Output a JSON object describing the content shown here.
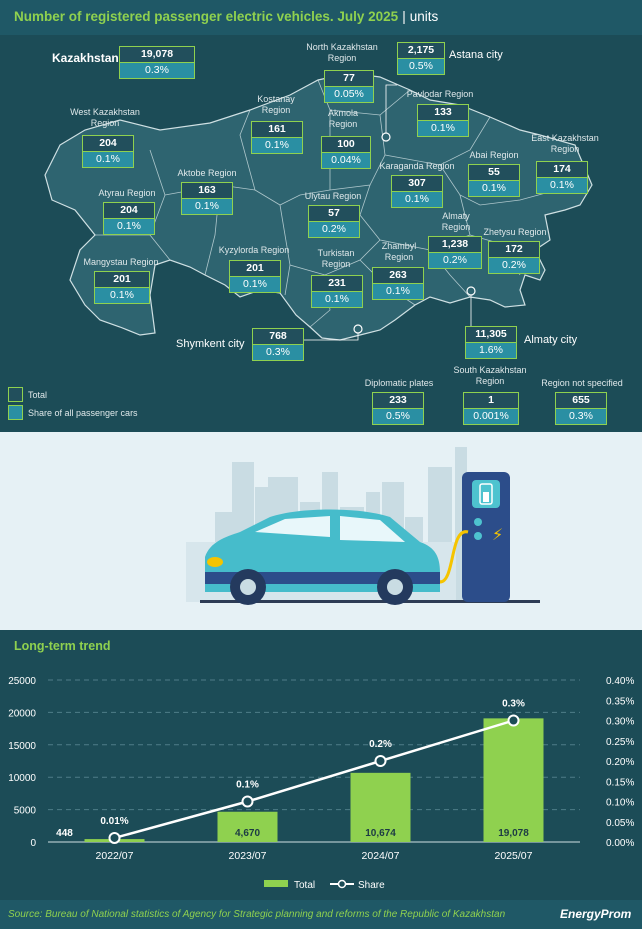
{
  "header": {
    "title": "Number of registered passenger electric vehicles. July 2025",
    "separator": "|",
    "unit": "units"
  },
  "map": {
    "kazakhstan": {
      "label": "Kazakhstan",
      "total": "19,078",
      "share": "0.3%"
    },
    "regions": [
      {
        "id": "north-kazakhstan",
        "label": "North Kazakhstan\nRegion",
        "total": "77",
        "share": "0.05%"
      },
      {
        "id": "astana",
        "label": "Astana city",
        "total": "2,175",
        "share": "0.5%"
      },
      {
        "id": "pavlodar",
        "label": "Pavlodar Region",
        "total": "133",
        "share": "0.1%"
      },
      {
        "id": "west-kazakhstan",
        "label": "West Kazakhstan\nRegion",
        "total": "204",
        "share": "0.1%"
      },
      {
        "id": "kostanay",
        "label": "Kostanay\nRegion",
        "total": "161",
        "share": "0.1%"
      },
      {
        "id": "akmola",
        "label": "Akmola\nRegion",
        "total": "100",
        "share": "0.04%"
      },
      {
        "id": "east-kazakhstan",
        "label": "East Kazakhstan\nRegion",
        "total": "174",
        "share": "0.1%"
      },
      {
        "id": "abai",
        "label": "Abai Region",
        "total": "55",
        "share": "0.1%"
      },
      {
        "id": "karaganda",
        "label": "Karaganda Region",
        "total": "307",
        "share": "0.1%"
      },
      {
        "id": "aktobe",
        "label": "Aktobe Region",
        "total": "163",
        "share": "0.1%"
      },
      {
        "id": "atyrau",
        "label": "Atyrau Region",
        "total": "204",
        "share": "0.1%"
      },
      {
        "id": "ulytau",
        "label": "Ulytau Region",
        "total": "57",
        "share": "0.2%"
      },
      {
        "id": "almaty-region",
        "label": "Almaty\nRegion",
        "total": "1,238",
        "share": "0.2%"
      },
      {
        "id": "zhetysu",
        "label": "Zhetysu Region",
        "total": "172",
        "share": "0.2%"
      },
      {
        "id": "mangystau",
        "label": "Mangystau Region",
        "total": "201",
        "share": "0.1%"
      },
      {
        "id": "kyzylorda",
        "label": "Kyzylorda Region",
        "total": "201",
        "share": "0.1%"
      },
      {
        "id": "turkistan",
        "label": "Turkistan\nRegion",
        "total": "231",
        "share": "0.1%"
      },
      {
        "id": "zhambyl",
        "label": "Zhambyl\nRegion",
        "total": "263",
        "share": "0.1%"
      },
      {
        "id": "almaty-city",
        "label": "Almaty city",
        "total": "11,305",
        "share": "1.6%"
      },
      {
        "id": "shymkent",
        "label": "Shymkent city",
        "total": "768",
        "share": "0.3%"
      },
      {
        "id": "diplomatic",
        "label": "Diplomatic plates",
        "total": "233",
        "share": "0.5%"
      },
      {
        "id": "south-kazakhstan",
        "label": "South Kazakhstan\nRegion",
        "total": "1",
        "share": "0.001%"
      },
      {
        "id": "not-specified",
        "label": "Region not specified",
        "total": "655",
        "share": "0.3%"
      }
    ],
    "legend": {
      "total": "Total",
      "share": "Share of all passenger cars"
    }
  },
  "colors": {
    "green": "#8fd14f",
    "teal": "#2a8fa3",
    "bg": "#1c4c57",
    "land": "#2e6470"
  },
  "trend": {
    "title": "Long-term trend"
  },
  "chart_data": {
    "type": "bar",
    "categories": [
      "2022/07",
      "2023/07",
      "2024/07",
      "2025/07"
    ],
    "series": [
      {
        "name": "Total",
        "type": "bar",
        "axis": "left",
        "values": [
          448,
          4670,
          10674,
          19078
        ],
        "labels": [
          "448",
          "4,670",
          "10,674",
          "19,078"
        ]
      },
      {
        "name": "Share",
        "type": "line",
        "axis": "right",
        "values": [
          0.0001,
          0.001,
          0.002,
          0.003
        ],
        "labels": [
          "0.01%",
          "0.1%",
          "0.2%",
          "0.3%"
        ]
      }
    ],
    "ylim": [
      0,
      25000
    ],
    "y_ticks": [
      "0",
      "5000",
      "10000",
      "15000",
      "20000",
      "25000"
    ],
    "y2lim": [
      0,
      0.004
    ],
    "y2_ticks": [
      "0.00%",
      "0.05%",
      "0.10%",
      "0.15%",
      "0.20%",
      "0.25%",
      "0.30%",
      "0.35%",
      "0.40%"
    ],
    "grid": true,
    "legend": "bottom"
  },
  "footer": {
    "source": "Source: Bureau of National statistics of Agency for Strategic planning and reforms of the Republic of Kazakhstan",
    "brand": "EnergyProm"
  }
}
